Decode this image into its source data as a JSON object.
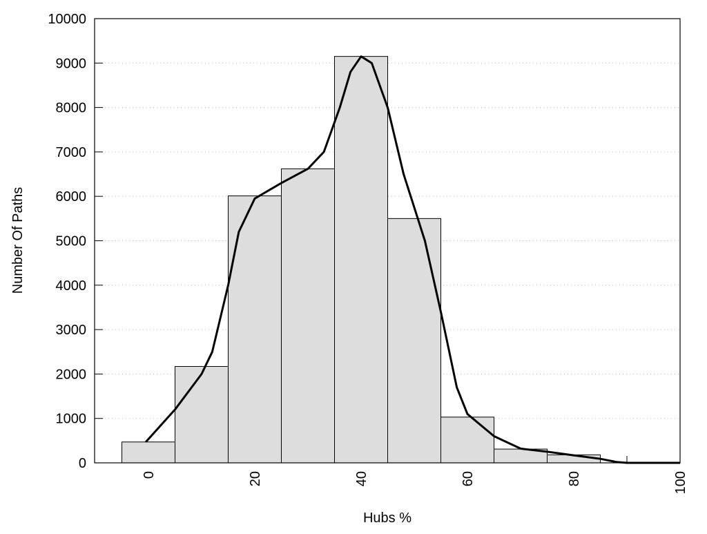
{
  "chart_data": {
    "type": "bar",
    "title": "",
    "xlabel": "Hubs %",
    "ylabel": "Number Of Paths",
    "xlim": [
      -10,
      100
    ],
    "ylim": [
      0,
      10000
    ],
    "grid": "horizontal dotted",
    "bar_color": "#dddddd",
    "bins": [
      [
        -5,
        5
      ],
      [
        5,
        15
      ],
      [
        15,
        25
      ],
      [
        25,
        35
      ],
      [
        35,
        45
      ],
      [
        45,
        55
      ],
      [
        55,
        65
      ],
      [
        65,
        75
      ],
      [
        75,
        85
      ]
    ],
    "values": [
      470,
      2170,
      6010,
      6620,
      9150,
      5500,
      1030,
      310,
      180
    ],
    "xticks": [
      0,
      20,
      40,
      60,
      80,
      100
    ],
    "xtick_labels": [
      "0",
      "20",
      "40",
      "60",
      "80",
      "100"
    ],
    "yticks": [
      0,
      1000,
      2000,
      3000,
      4000,
      5000,
      6000,
      7000,
      8000,
      9000,
      10000
    ],
    "ytick_labels": [
      "0",
      "1000",
      "2000",
      "3000",
      "4000",
      "5000",
      "6000",
      "7000",
      "8000",
      "9000",
      "10000"
    ],
    "density_curve": {
      "x": [
        -0.5,
        5,
        10,
        12,
        15,
        17,
        20,
        25,
        30,
        33,
        36,
        38,
        40,
        42,
        45,
        48,
        52,
        55,
        58,
        60,
        65,
        70,
        75,
        80,
        85,
        88,
        90,
        100
      ],
      "y": [
        470,
        1200,
        2000,
        2500,
        4000,
        5200,
        5950,
        6300,
        6620,
        7000,
        8000,
        8800,
        9150,
        9000,
        8000,
        6500,
        5000,
        3400,
        1700,
        1100,
        600,
        320,
        250,
        170,
        90,
        20,
        0,
        0
      ]
    }
  }
}
